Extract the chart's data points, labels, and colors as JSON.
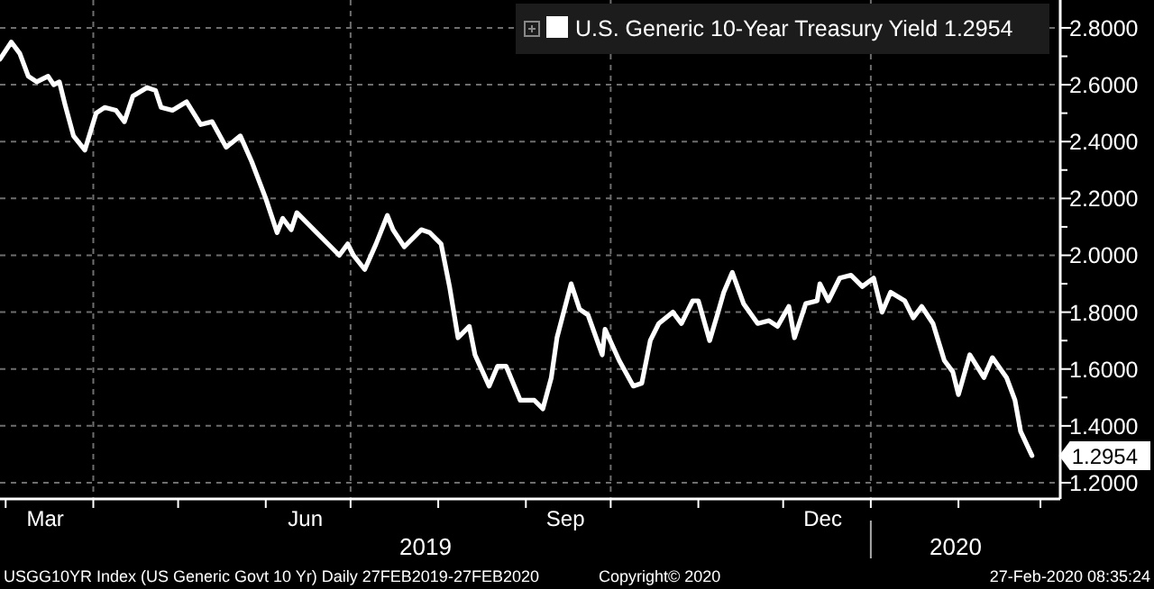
{
  "chart_data": {
    "type": "line",
    "x": [
      "2019-02-27",
      "2019-03-03",
      "2019-03-06",
      "2019-03-09",
      "2019-03-12",
      "2019-03-16",
      "2019-03-18",
      "2019-03-20",
      "2019-03-22",
      "2019-03-25",
      "2019-03-29",
      "2019-04-02",
      "2019-04-05",
      "2019-04-09",
      "2019-04-12",
      "2019-04-15",
      "2019-04-20",
      "2019-04-23",
      "2019-04-25",
      "2019-04-29",
      "2019-05-04",
      "2019-05-09",
      "2019-05-13",
      "2019-05-18",
      "2019-05-23",
      "2019-05-27",
      "2019-06-01",
      "2019-06-05",
      "2019-06-07",
      "2019-06-10",
      "2019-06-12",
      "2019-06-18",
      "2019-06-24",
      "2019-06-27",
      "2019-06-30",
      "2019-07-02",
      "2019-07-06",
      "2019-07-10",
      "2019-07-14",
      "2019-07-16",
      "2019-07-20",
      "2019-07-26",
      "2019-07-29",
      "2019-08-02",
      "2019-08-05",
      "2019-08-08",
      "2019-08-12",
      "2019-08-14",
      "2019-08-19",
      "2019-08-22",
      "2019-08-25",
      "2019-08-30",
      "2019-09-04",
      "2019-09-07",
      "2019-09-10",
      "2019-09-12",
      "2019-09-17",
      "2019-09-20",
      "2019-09-23",
      "2019-09-28",
      "2019-09-29",
      "2019-10-04",
      "2019-10-09",
      "2019-10-12",
      "2019-10-15",
      "2019-10-18",
      "2019-10-23",
      "2019-10-26",
      "2019-10-30",
      "2019-11-01",
      "2019-11-05",
      "2019-11-08",
      "2019-11-10",
      "2019-11-13",
      "2019-11-17",
      "2019-11-22",
      "2019-11-26",
      "2019-11-29",
      "2019-12-03",
      "2019-12-05",
      "2019-12-09",
      "2019-12-13",
      "2019-12-14",
      "2019-12-17",
      "2019-12-21",
      "2019-12-25",
      "2019-12-29",
      "2020-01-02",
      "2020-01-05",
      "2020-01-08",
      "2020-01-13",
      "2020-01-16",
      "2020-01-19",
      "2020-01-23",
      "2020-01-27",
      "2020-01-30",
      "2020-02-01",
      "2020-02-05",
      "2020-02-10",
      "2020-02-13",
      "2020-02-18",
      "2020-02-21",
      "2020-02-23",
      "2020-02-27"
    ],
    "series": [
      {
        "name": "U.S. Generic 10-Year Treasury Yield 1.2954",
        "color": "#ffffff",
        "values": [
          2.69,
          2.75,
          2.71,
          2.63,
          2.61,
          2.63,
          2.6,
          2.61,
          2.53,
          2.42,
          2.37,
          2.5,
          2.52,
          2.51,
          2.47,
          2.56,
          2.59,
          2.58,
          2.52,
          2.51,
          2.54,
          2.46,
          2.47,
          2.38,
          2.42,
          2.33,
          2.2,
          2.08,
          2.13,
          2.09,
          2.15,
          2.09,
          2.03,
          2.0,
          2.04,
          2.0,
          1.95,
          2.04,
          2.14,
          2.09,
          2.03,
          2.09,
          2.08,
          2.04,
          1.89,
          1.71,
          1.75,
          1.65,
          1.54,
          1.61,
          1.61,
          1.49,
          1.49,
          1.46,
          1.57,
          1.71,
          1.9,
          1.81,
          1.79,
          1.65,
          1.74,
          1.63,
          1.54,
          1.55,
          1.7,
          1.76,
          1.8,
          1.76,
          1.84,
          1.84,
          1.7,
          1.8,
          1.87,
          1.94,
          1.83,
          1.76,
          1.77,
          1.75,
          1.82,
          1.71,
          1.83,
          1.84,
          1.9,
          1.84,
          1.92,
          1.93,
          1.89,
          1.92,
          1.8,
          1.87,
          1.84,
          1.78,
          1.82,
          1.76,
          1.63,
          1.59,
          1.51,
          1.65,
          1.57,
          1.64,
          1.57,
          1.49,
          1.38,
          1.2954
        ]
      }
    ],
    "xlim": [
      "2019-02-27",
      "2020-03-08"
    ],
    "xticks": [
      {
        "value": "2019-03-01",
        "label": null
      },
      {
        "value": "2019-03-15",
        "label": "Mar"
      },
      {
        "value": "2019-04-01",
        "label": null
      },
      {
        "value": "2019-05-01",
        "label": null
      },
      {
        "value": "2019-06-01",
        "label": null
      },
      {
        "value": "2019-06-15",
        "label": "Jun"
      },
      {
        "value": "2019-07-01",
        "label": null
      },
      {
        "value": "2019-08-01",
        "label": null
      },
      {
        "value": "2019-09-01",
        "label": null
      },
      {
        "value": "2019-09-15",
        "label": "Sep"
      },
      {
        "value": "2019-10-01",
        "label": null
      },
      {
        "value": "2019-11-01",
        "label": null
      },
      {
        "value": "2019-12-01",
        "label": null
      },
      {
        "value": "2019-12-15",
        "label": "Dec"
      },
      {
        "value": "2020-01-01",
        "label": null
      },
      {
        "value": "2020-02-01",
        "label": null
      },
      {
        "value": "2020-03-01",
        "label": null
      }
    ],
    "ylim": [
      1.143,
      2.898
    ],
    "yticks": [
      {
        "value": 1.2,
        "label": "1.2000"
      },
      {
        "value": 1.3,
        "label": null
      },
      {
        "value": 1.4,
        "label": "1.4000"
      },
      {
        "value": 1.5,
        "label": null
      },
      {
        "value": 1.6,
        "label": "1.6000"
      },
      {
        "value": 1.7,
        "label": null
      },
      {
        "value": 1.8,
        "label": "1.8000"
      },
      {
        "value": 1.9,
        "label": null
      },
      {
        "value": 2.0,
        "label": "2.0000"
      },
      {
        "value": 2.1,
        "label": null
      },
      {
        "value": 2.2,
        "label": "2.2000"
      },
      {
        "value": 2.3,
        "label": null
      },
      {
        "value": 2.4,
        "label": "2.4000"
      },
      {
        "value": 2.5,
        "label": null
      },
      {
        "value": 2.6,
        "label": "2.6000"
      },
      {
        "value": 2.7,
        "label": null
      },
      {
        "value": 2.8,
        "label": "2.8000"
      }
    ],
    "grid": true,
    "legend": "top right",
    "annotations": [
      "2019",
      "2020",
      {
        "text": "1.2954",
        "x": "2020-02-27",
        "y": 1.2954
      },
      "USGG10YR Index (US Generic Govt 10 Yr)  Daily 27FEB2019-27FEB2020",
      "Copyright© 2020",
      "27-Feb-2020 08:35:24"
    ]
  }
}
